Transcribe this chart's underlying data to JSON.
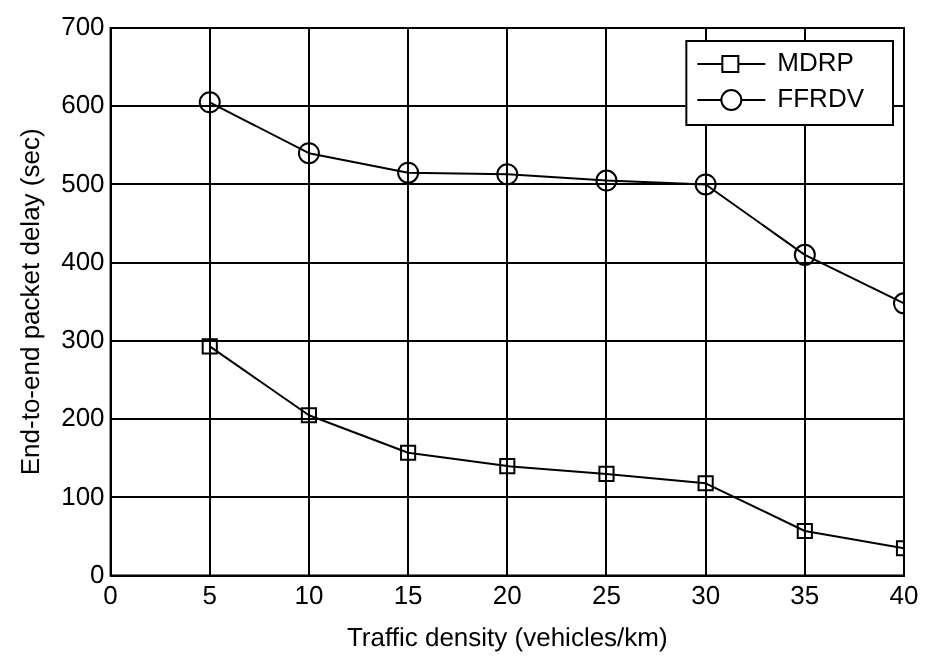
{
  "chart_data": {
    "type": "line",
    "xlabel": "Traffic density (vehicles/km)",
    "ylabel": "End-to-end packet delay (sec)",
    "x": [
      5,
      10,
      15,
      20,
      25,
      30,
      35,
      40
    ],
    "series": [
      {
        "name": "MDRP",
        "color": "#000000",
        "marker": "square",
        "values": [
          293,
          205,
          157,
          140,
          130,
          118,
          57,
          35
        ]
      },
      {
        "name": "FFRDV",
        "color": "#000000",
        "marker": "circle",
        "values": [
          605,
          540,
          515,
          513,
          505,
          500,
          410,
          348
        ]
      }
    ],
    "xlim": [
      0,
      40
    ],
    "xticks": [
      0,
      5,
      10,
      15,
      20,
      25,
      30,
      35,
      40
    ],
    "ylim": [
      0,
      700
    ],
    "yticks": [
      0,
      100,
      200,
      300,
      400,
      500,
      600,
      700
    ],
    "grid": true,
    "legend": "top right",
    "line_style": "solid"
  }
}
